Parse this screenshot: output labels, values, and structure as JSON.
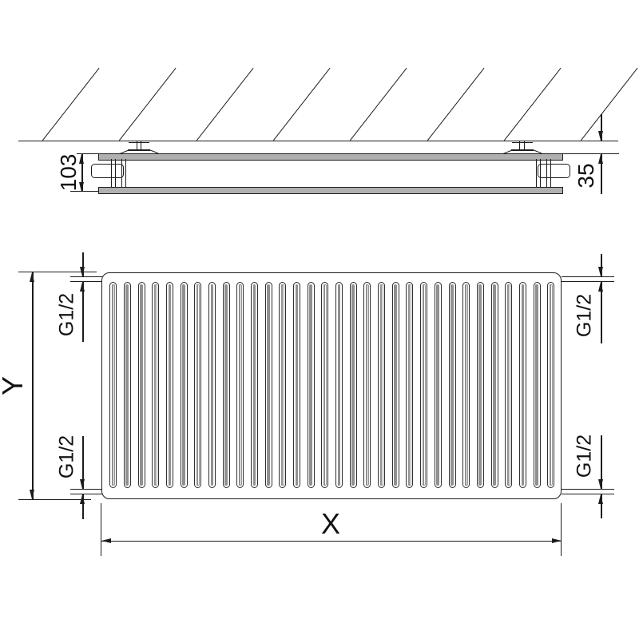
{
  "side_view": {
    "depth_label": "103",
    "wall_gap_label": "35",
    "hatch_count": 8
  },
  "front_view": {
    "height_label": "Y",
    "width_label": "X",
    "corrugation_count": 32,
    "connections": [
      {
        "position": "top-left",
        "label": "G1/2"
      },
      {
        "position": "bottom-left",
        "label": "G1/2"
      },
      {
        "position": "top-right",
        "label": "G1/2"
      },
      {
        "position": "bottom-right",
        "label": "G1/2"
      }
    ]
  },
  "colors": {
    "line": "#1c1c1c",
    "panel_fill": "#b0b0b0",
    "slot_inner": "#909090",
    "background": "#ffffff"
  }
}
